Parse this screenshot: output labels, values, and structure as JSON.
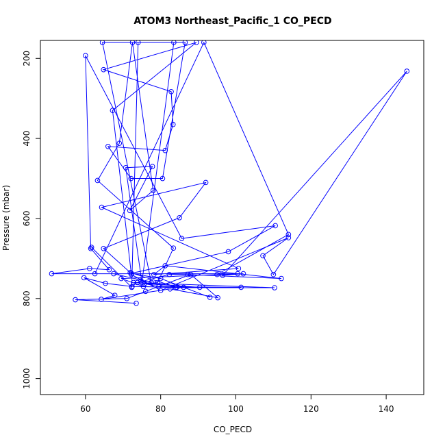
{
  "chart_data": {
    "type": "line",
    "title": "ATOM3 Northeast_Pacific_1 CO_PECD",
    "xlabel": "CO_PECD",
    "ylabel": "Pressure (mbar)",
    "xlim": [
      48,
      150
    ],
    "ylim": [
      1040,
      155
    ],
    "y_axis_inverted": true,
    "grid": false,
    "legend": "none",
    "x_ticks": [
      60,
      80,
      100,
      120,
      140
    ],
    "x_tick_labels": [
      "60",
      "80",
      "100",
      "120",
      "140"
    ],
    "y_ticks": [
      200,
      400,
      600,
      800,
      1000
    ],
    "y_tick_labels": [
      "200",
      "400",
      "600",
      "800",
      "1000"
    ],
    "series": [
      {
        "color": "#0000ff",
        "marker": "open-circle",
        "points": [
          [
            73.5,
            812
          ],
          [
            57.3,
            803
          ],
          [
            71.0,
            800
          ],
          [
            76.0,
            782
          ],
          [
            88.0,
            740
          ],
          [
            95.2,
            798
          ],
          [
            82.5,
            776
          ],
          [
            64.2,
            802
          ],
          [
            67.8,
            792
          ],
          [
            59.6,
            748
          ],
          [
            65.3,
            762
          ],
          [
            72.4,
            770
          ],
          [
            86.1,
            772
          ],
          [
            93.1,
            797
          ],
          [
            80.0,
            750
          ],
          [
            72.2,
            737
          ],
          [
            98.0,
            683
          ],
          [
            110.5,
            618
          ],
          [
            85.6,
            650
          ],
          [
            60.0,
            193
          ],
          [
            61.4,
            675
          ],
          [
            66.3,
            728
          ],
          [
            61.1,
            725
          ],
          [
            51.0,
            738
          ],
          [
            100.5,
            738
          ],
          [
            69.5,
            750
          ],
          [
            75.4,
            770
          ],
          [
            84.0,
            773
          ],
          [
            110.3,
            773
          ],
          [
            72.8,
            760
          ],
          [
            90.4,
            772
          ],
          [
            75.7,
            763
          ],
          [
            79.5,
            770
          ],
          [
            101.4,
            772
          ],
          [
            84.3,
            772
          ],
          [
            71.9,
            735
          ],
          [
            64.8,
            675
          ],
          [
            85.0,
            598
          ],
          [
            92.0,
            510
          ],
          [
            64.3,
            572
          ],
          [
            100.7,
            725
          ],
          [
            78.2,
            740
          ],
          [
            81.2,
            718
          ],
          [
            112.1,
            750
          ],
          [
            87.2,
            740
          ],
          [
            82.3,
            740
          ],
          [
            73.8,
            760
          ],
          [
            74.8,
            756
          ],
          [
            79.2,
            760
          ],
          [
            83.4,
            674
          ],
          [
            63.2,
            505
          ],
          [
            69.0,
            412
          ],
          [
            72.5,
            160
          ],
          [
            78.0,
            530
          ],
          [
            71.8,
            580
          ],
          [
            77.8,
            470
          ],
          [
            70.7,
            473
          ],
          [
            75.0,
            760
          ],
          [
            83.5,
            160
          ],
          [
            64.5,
            160
          ],
          [
            77.5,
            760
          ],
          [
            67.5,
            738
          ],
          [
            62.5,
            738
          ],
          [
            91.5,
            160
          ],
          [
            114.0,
            640
          ],
          [
            95.0,
            740
          ],
          [
            102.0,
            738
          ],
          [
            96.5,
            742
          ],
          [
            145.5,
            232
          ],
          [
            110.0,
            740
          ],
          [
            107.2,
            693
          ],
          [
            114.0,
            648
          ],
          [
            80.0,
            780
          ],
          [
            72.2,
            740
          ],
          [
            67.2,
            330
          ],
          [
            89.5,
            160
          ],
          [
            64.8,
            228
          ],
          [
            82.8,
            283
          ],
          [
            83.3,
            365
          ],
          [
            81.2,
            430
          ],
          [
            66.0,
            420
          ],
          [
            72.1,
            500
          ],
          [
            80.5,
            500
          ],
          [
            86.5,
            160
          ],
          [
            74.0,
            160
          ],
          [
            72.3,
            772
          ],
          [
            61.6,
            672
          ]
        ]
      }
    ]
  }
}
